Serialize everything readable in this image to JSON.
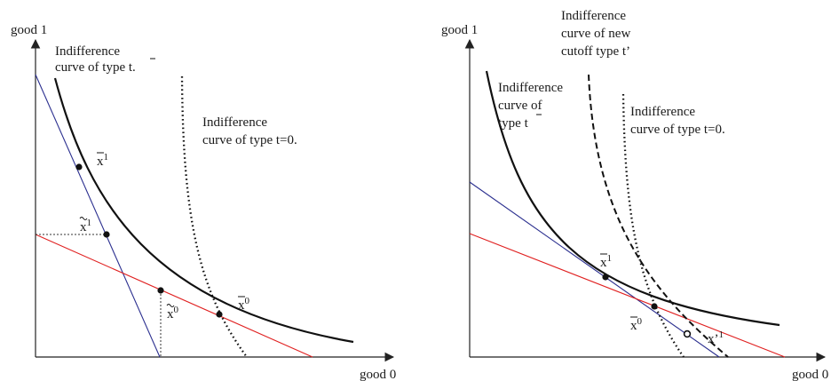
{
  "left_panel": {
    "y_axis_label": "good 1",
    "x_axis_label": "good 0",
    "annotations": {
      "curve_tbar": [
        "Indifference",
        "curve of type t."
      ],
      "curve_t0": [
        "Indifference",
        "curve of type t=0."
      ]
    },
    "points": {
      "xbar1": {
        "base": "x",
        "sup": "1"
      },
      "xtilde1": {
        "base": "x",
        "sup": "1"
      },
      "xtilde0": {
        "base": "x",
        "sup": "0"
      },
      "xbar0": {
        "base": "x",
        "sup": "0"
      }
    }
  },
  "right_panel": {
    "y_axis_label": "good 1",
    "x_axis_label": "good 0",
    "annotations": {
      "curve_tprime": [
        "Indifference",
        "curve of new",
        "cutoff type t’"
      ],
      "curve_tbar": [
        "Indifference",
        "curve of",
        "type t"
      ],
      "curve_t0": [
        "Indifference",
        "curve of type t=0."
      ]
    },
    "points": {
      "xbar1": {
        "base": "x",
        "sup": "1"
      },
      "xbar0": {
        "base": "x",
        "sup": "0"
      },
      "xprime1": {
        "base": "x’",
        "sup": "1"
      }
    }
  },
  "colors": {
    "axis": "#222222",
    "curve": "#111111",
    "blue_line": "#2b2f8f",
    "red_line": "#e02020"
  }
}
